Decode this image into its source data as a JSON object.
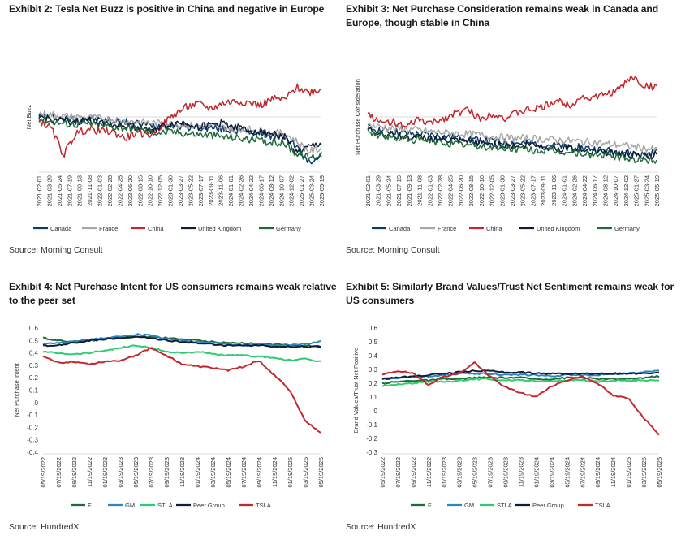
{
  "panels": [
    {
      "exhibit": "Exhibit 2: Tesla Net Buzz is positive in China and negative in Europe",
      "source": "Source: Morning Consult"
    },
    {
      "exhibit": "Exhibit 3: Net Purchase Consideration remains weak in Canada and Europe, though stable in China",
      "source": "Source: Morning Consult"
    },
    {
      "exhibit": "Exhibit 4: Net Purchase Intent for US consumers remains weak relative to the peer set",
      "source": "Source: HundredX"
    },
    {
      "exhibit": "Exhibit 5: Similarly Brand Values/Trust Net Sentiment remains weak for US consumers",
      "source": "Source: HundredX"
    }
  ],
  "chart_data": [
    {
      "type": "line",
      "ylabel": "Net Buzz",
      "x_ticks": [
        "2021-02-01",
        "2021-03-29",
        "2021-05-24",
        "2021-07-19",
        "2021-09-13",
        "2021-11-08",
        "2022-01-03",
        "2022-02-28",
        "2022-04-25",
        "2022-06-20",
        "2022-08-15",
        "2022-10-10",
        "2022-12-05",
        "2023-01-30",
        "2023-03-27",
        "2023-05-22",
        "2023-07-17",
        "2023-09-11",
        "2023-11-06",
        "2024-01-01",
        "2024-02-26",
        "2024-04-22",
        "2024-06-17",
        "2024-08-12",
        "2024-10-07",
        "2024-12-02",
        "2025-01-27",
        "2025-03-24",
        "2025-05-19"
      ],
      "ylim": [
        -6.5,
        6.5
      ],
      "y_ticks_shown": false,
      "grid": false,
      "reference_line": 0,
      "legend_position": "bottom",
      "series": [
        {
          "name": "Canada",
          "color": "#0b3d66",
          "values": [
            0.2,
            0.0,
            -0.2,
            -0.3,
            -0.2,
            -0.4,
            -0.5,
            -0.6,
            -0.8,
            -1.0,
            -1.1,
            -1.0,
            -1.2,
            -1.3,
            -1.3,
            -1.5,
            -1.6,
            -1.8,
            -2.0,
            -2.3,
            -2.4,
            -3.6,
            -5.6,
            -4.4
          ]
        },
        {
          "name": "France",
          "color": "#a6a6a6",
          "values": [
            0.4,
            0.3,
            0.1,
            0.0,
            -0.1,
            -0.2,
            -0.3,
            -0.5,
            -0.6,
            -0.7,
            -0.8,
            -0.9,
            -1.0,
            -1.1,
            -1.1,
            -1.3,
            -1.4,
            -1.5,
            -1.7,
            -1.9,
            -2.0,
            -3.0,
            -4.2,
            -3.8
          ]
        },
        {
          "name": "China",
          "color": "#c1272d",
          "values": [
            -0.4,
            -1.4,
            -4.6,
            -2.0,
            -1.5,
            -1.7,
            -1.8,
            -2.6,
            -1.9,
            -2.2,
            -1.0,
            0.3,
            1.2,
            1.6,
            1.0,
            1.7,
            1.9,
            1.8,
            1.4,
            2.2,
            2.1,
            3.6,
            3.0,
            3.4
          ]
        },
        {
          "name": "United Kingdom",
          "color": "#0e1e3a",
          "values": [
            0.0,
            -0.3,
            -0.5,
            -0.6,
            -0.4,
            -0.6,
            -0.9,
            -1.1,
            -1.2,
            -1.6,
            -1.2,
            -0.8,
            -0.7,
            -1.2,
            -1.0,
            -0.7,
            -1.2,
            -1.6,
            -1.7,
            -2.0,
            -2.4,
            -4.4,
            -3.7,
            -3.2
          ]
        },
        {
          "name": "Germany",
          "color": "#1f6b3a",
          "values": [
            -0.2,
            -0.5,
            -0.8,
            -0.9,
            -0.8,
            -1.0,
            -1.2,
            -1.3,
            -1.5,
            -1.8,
            -1.9,
            -1.8,
            -2.0,
            -2.1,
            -2.2,
            -2.4,
            -2.5,
            -2.7,
            -2.9,
            -3.1,
            -3.2,
            -4.5,
            -4.9,
            -4.6
          ]
        }
      ]
    },
    {
      "type": "line",
      "ylabel": "Net Purchase Consideration",
      "x_ticks": [
        "2021-02-01",
        "2021-03-29",
        "2021-05-24",
        "2021-07-19",
        "2021-09-13",
        "2021-11-08",
        "2022-01-03",
        "2022-02-28",
        "2022-04-25",
        "2022-06-20",
        "2022-08-15",
        "2022-10-10",
        "2022-12-05",
        "2023-01-30",
        "2023-03-27",
        "2023-05-22",
        "2023-07-17",
        "2023-09-11",
        "2023-11-06",
        "2024-01-01",
        "2024-02-26",
        "2024-04-22",
        "2024-06-17",
        "2024-08-12",
        "2024-10-07",
        "2024-12-02",
        "2025-01-27",
        "2025-03-24",
        "2025-05-19"
      ],
      "ylim": [
        -6.5,
        6.5
      ],
      "y_ticks_shown": false,
      "grid": false,
      "reference_line": 0,
      "legend_position": "bottom",
      "series": [
        {
          "name": "Canada",
          "color": "#0b3d66",
          "values": [
            -1.3,
            -1.6,
            -1.8,
            -2.0,
            -2.1,
            -2.2,
            -2.4,
            -2.5,
            -2.6,
            -2.8,
            -3.0,
            -3.1,
            -3.2,
            -3.2,
            -3.3,
            -3.5,
            -3.6,
            -3.7,
            -3.9,
            -4.1,
            -4.2,
            -4.4,
            -4.6,
            -4.3
          ]
        },
        {
          "name": "France",
          "color": "#a6a6a6",
          "values": [
            -1.0,
            -1.2,
            -1.4,
            -1.5,
            -1.6,
            -1.8,
            -1.9,
            -2.0,
            -2.1,
            -2.2,
            -2.4,
            -2.5,
            -2.6,
            -2.6,
            -2.7,
            -2.8,
            -2.9,
            -3.0,
            -3.1,
            -3.3,
            -3.4,
            -3.6,
            -3.8,
            -4.0
          ]
        },
        {
          "name": "China",
          "color": "#c1272d",
          "values": [
            0.5,
            -0.8,
            -0.5,
            -1.4,
            -0.3,
            -0.8,
            -0.2,
            0.4,
            0.9,
            -0.3,
            0.5,
            -0.2,
            0.6,
            0.9,
            1.2,
            2.0,
            1.4,
            2.4,
            2.3,
            2.8,
            3.3,
            4.9,
            3.8,
            3.6
          ]
        },
        {
          "name": "United Kingdom",
          "color": "#0e1e3a",
          "values": [
            -1.5,
            -2.0,
            -2.2,
            -2.4,
            -2.5,
            -2.6,
            -2.8,
            -2.9,
            -3.0,
            -3.1,
            -3.3,
            -3.4,
            -3.5,
            -3.3,
            -3.6,
            -3.8,
            -3.8,
            -4.0,
            -4.1,
            -4.3,
            -4.4,
            -4.6,
            -4.9,
            -4.6
          ]
        },
        {
          "name": "Germany",
          "color": "#1f6b3a",
          "values": [
            -1.8,
            -2.2,
            -2.5,
            -2.7,
            -2.8,
            -3.0,
            -3.1,
            -3.3,
            -3.4,
            -3.6,
            -3.7,
            -3.8,
            -3.9,
            -4.0,
            -4.1,
            -4.2,
            -4.3,
            -4.4,
            -4.6,
            -4.7,
            -4.9,
            -5.1,
            -5.3,
            -5.2
          ]
        }
      ]
    },
    {
      "type": "line",
      "ylabel": "Net Purchase Intent",
      "x_ticks": [
        "05/19/2022",
        "07/19/2022",
        "09/19/2022",
        "11/19/2022",
        "01/19/2023",
        "03/19/2023",
        "05/19/2023",
        "07/19/2023",
        "09/19/2023",
        "11/19/2023",
        "01/19/2024",
        "03/19/2024",
        "05/19/2024",
        "07/19/2024",
        "09/19/2024",
        "11/19/2024",
        "01/19/2025",
        "03/19/2025",
        "05/19/2025"
      ],
      "y_ticks": [
        0.6,
        0.5,
        0.4,
        0.3,
        0.2,
        0.1,
        0,
        -0.1,
        -0.2,
        -0.3,
        -0.4
      ],
      "ylim": [
        -0.4,
        0.6
      ],
      "grid": false,
      "legend_position": "bottom",
      "series": [
        {
          "name": "F",
          "color": "#1f6b3a",
          "values": [
            0.52,
            0.5,
            0.49,
            0.5,
            0.51,
            0.52,
            0.53,
            0.53,
            0.52,
            0.51,
            0.5,
            0.49,
            0.48,
            0.48,
            0.47,
            0.47,
            0.46,
            0.46,
            0.45
          ]
        },
        {
          "name": "GM",
          "color": "#2e86c1",
          "values": [
            0.47,
            0.48,
            0.49,
            0.51,
            0.52,
            0.53,
            0.55,
            0.54,
            0.51,
            0.5,
            0.49,
            0.48,
            0.47,
            0.46,
            0.47,
            0.46,
            0.46,
            0.47,
            0.49
          ]
        },
        {
          "name": "STLA",
          "color": "#2ecc71",
          "values": [
            0.41,
            0.4,
            0.39,
            0.4,
            0.42,
            0.44,
            0.46,
            0.44,
            0.41,
            0.4,
            0.41,
            0.39,
            0.38,
            0.38,
            0.37,
            0.36,
            0.34,
            0.35,
            0.33
          ]
        },
        {
          "name": "Peer Group",
          "color": "#0e1e3a",
          "values": [
            0.46,
            0.46,
            0.48,
            0.5,
            0.51,
            0.52,
            0.53,
            0.52,
            0.5,
            0.49,
            0.48,
            0.47,
            0.46,
            0.46,
            0.46,
            0.45,
            0.45,
            0.45,
            0.45
          ]
        },
        {
          "name": "TSLA",
          "color": "#c1272d",
          "values": [
            0.37,
            0.32,
            0.33,
            0.31,
            0.33,
            0.34,
            0.38,
            0.44,
            0.38,
            0.31,
            0.29,
            0.28,
            0.26,
            0.29,
            0.34,
            0.22,
            0.1,
            -0.15,
            -0.24
          ]
        }
      ]
    },
    {
      "type": "line",
      "ylabel": "Brand Values/Trust Net Positive",
      "x_ticks": [
        "05/19/2022",
        "07/19/2022",
        "09/19/2022",
        "11/19/2022",
        "01/19/2023",
        "03/19/2023",
        "05/19/2023",
        "07/19/2023",
        "09/19/2023",
        "11/19/2023",
        "01/19/2024",
        "03/19/2024",
        "05/19/2024",
        "07/19/2024",
        "09/19/2024",
        "11/19/2024",
        "01/19/2025",
        "03/19/2025",
        "05/19/2025"
      ],
      "y_ticks": [
        0.6,
        0.5,
        0.4,
        0.3,
        0.2,
        0.1,
        0,
        -0.1,
        -0.2,
        -0.3
      ],
      "ylim": [
        -0.3,
        0.6
      ],
      "grid": false,
      "legend_position": "bottom",
      "series": [
        {
          "name": "F",
          "color": "#1f6b3a",
          "values": [
            0.2,
            0.21,
            0.22,
            0.22,
            0.23,
            0.23,
            0.24,
            0.24,
            0.24,
            0.24,
            0.23,
            0.23,
            0.24,
            0.24,
            0.23,
            0.23,
            0.23,
            0.24,
            0.25
          ]
        },
        {
          "name": "GM",
          "color": "#2e86c1",
          "values": [
            0.23,
            0.24,
            0.25,
            0.25,
            0.26,
            0.27,
            0.27,
            0.27,
            0.26,
            0.26,
            0.26,
            0.25,
            0.26,
            0.26,
            0.26,
            0.27,
            0.27,
            0.28,
            0.29
          ]
        },
        {
          "name": "STLA",
          "color": "#2ecc71",
          "values": [
            0.18,
            0.19,
            0.2,
            0.21,
            0.21,
            0.22,
            0.23,
            0.23,
            0.22,
            0.22,
            0.22,
            0.21,
            0.22,
            0.22,
            0.21,
            0.22,
            0.22,
            0.22,
            0.22
          ]
        },
        {
          "name": "Peer Group",
          "color": "#0e1e3a",
          "values": [
            0.23,
            0.24,
            0.25,
            0.26,
            0.27,
            0.28,
            0.29,
            0.29,
            0.28,
            0.28,
            0.27,
            0.27,
            0.27,
            0.27,
            0.27,
            0.27,
            0.27,
            0.27,
            0.28
          ]
        },
        {
          "name": "TSLA",
          "color": "#c1272d",
          "values": [
            0.26,
            0.29,
            0.27,
            0.19,
            0.25,
            0.27,
            0.35,
            0.25,
            0.17,
            0.13,
            0.1,
            0.18,
            0.22,
            0.25,
            0.2,
            0.11,
            0.09,
            -0.05,
            -0.17
          ]
        }
      ]
    }
  ]
}
